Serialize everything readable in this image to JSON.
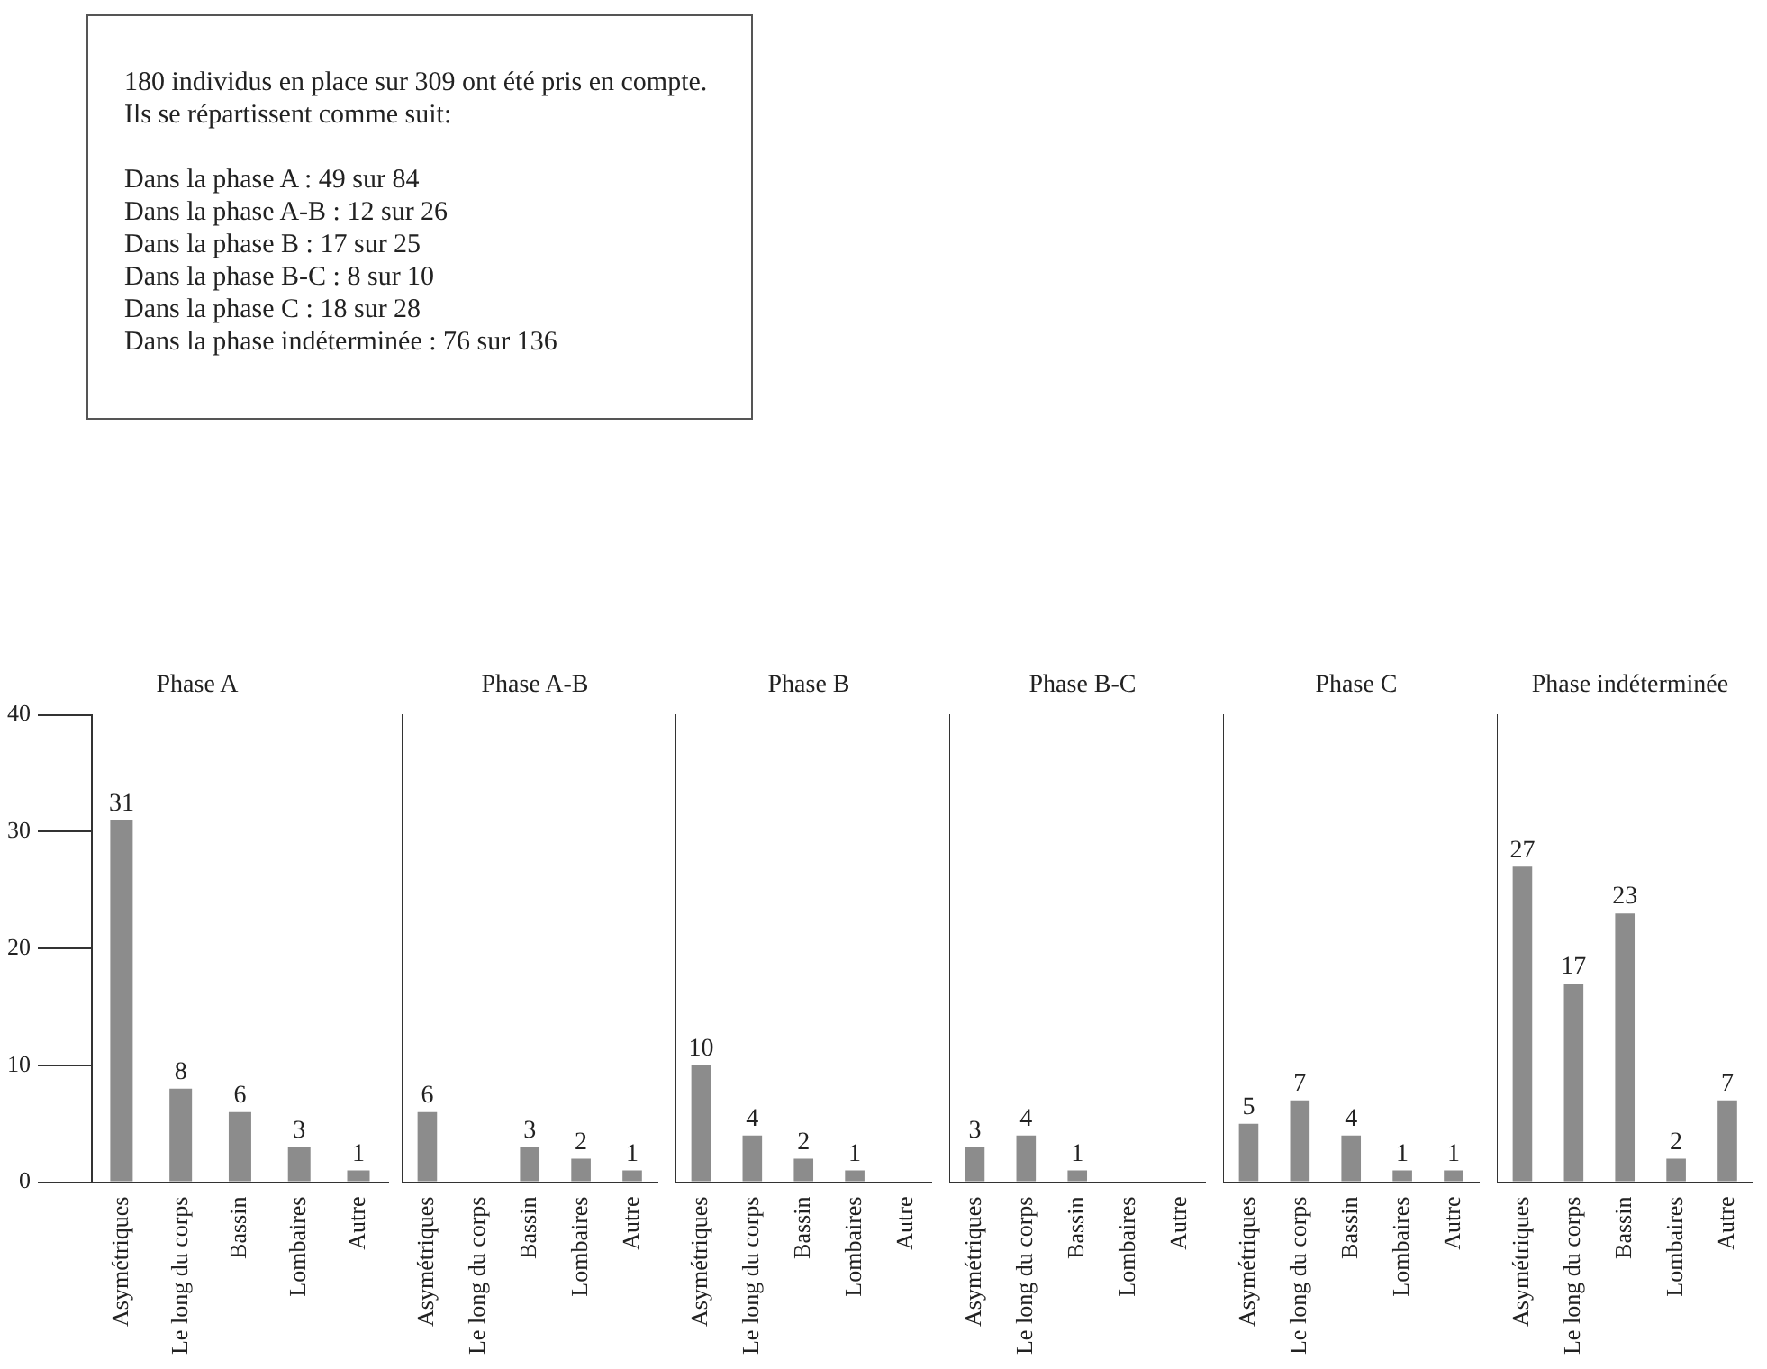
{
  "chart_data": [
    {
      "type": "other",
      "annotations": [
        "180 individus en place sur 309 ont été pris en compte.",
        "Ils se répartissent comme suit:",
        "Dans la phase A : 49 sur 84",
        "Dans la phase A-B : 12 sur 26",
        "Dans la phase B : 17 sur 25",
        "Dans la phase B-C : 8 sur 10",
        "Dans la phase C : 18 sur 28",
        "Dans la phase indéterminée : 76 sur 136"
      ]
    },
    {
      "type": "bar",
      "title": "Phase A",
      "categories": [
        "Asymétriques",
        "Le long du corps",
        "Bassin",
        "Lombaires",
        "Autre"
      ],
      "values": [
        31,
        8,
        6,
        3,
        1
      ],
      "color": "#8c8c8c",
      "ylim": [
        0,
        40
      ],
      "yticks": [
        0,
        10,
        20,
        30,
        40
      ],
      "data_labels": true
    },
    {
      "type": "bar",
      "title": "Phase A-B",
      "categories": [
        "Asymétriques",
        "Le long du corps",
        "Bassin",
        "Lombaires",
        "Autre"
      ],
      "values": [
        6,
        null,
        3,
        2,
        1
      ],
      "color": "#8c8c8c",
      "ylim": [
        0,
        40
      ],
      "yticks": [
        0,
        10,
        20,
        30,
        40
      ],
      "data_labels": true,
      "tick_labels": "x"
    },
    {
      "type": "bar",
      "title": "Phase B",
      "categories": [
        "Asymétriques",
        "Le long du corps",
        "Bassin",
        "Lombaires",
        "Autre"
      ],
      "values": [
        10,
        4,
        2,
        1,
        null
      ],
      "color": "#8c8c8c",
      "ylim": [
        0,
        40
      ],
      "yticks": [
        0,
        10,
        20,
        30,
        40
      ],
      "data_labels": true,
      "tick_labels": "x"
    },
    {
      "type": "bar",
      "title": "Phase B-C",
      "categories": [
        "Asymétriques",
        "Le long du corps",
        "Bassin",
        "Lombaires",
        "Autre"
      ],
      "values": [
        3,
        4,
        1,
        null,
        null
      ],
      "color": "#8c8c8c",
      "ylim": [
        0,
        40
      ],
      "yticks": [
        0,
        10,
        20,
        30,
        40
      ],
      "data_labels": true,
      "tick_labels": "x"
    },
    {
      "type": "bar",
      "title": "Phase C",
      "categories": [
        "Asymétriques",
        "Le long du corps",
        "Bassin",
        "Lombaires",
        "Autre"
      ],
      "values": [
        5,
        7,
        4,
        1,
        1
      ],
      "color": "#8c8c8c",
      "ylim": [
        0,
        40
      ],
      "yticks": [
        0,
        10,
        20,
        30,
        40
      ],
      "data_labels": true,
      "tick_labels": "x"
    },
    {
      "type": "bar",
      "title": "Phase indéterminée",
      "categories": [
        "Asymétriques",
        "Le long du corps",
        "Bassin",
        "Lombaires",
        "Autre"
      ],
      "values": [
        27,
        17,
        23,
        2,
        7
      ],
      "color": "#8c8c8c",
      "ylim": [
        0,
        40
      ],
      "yticks": [
        0,
        10,
        20,
        30,
        40
      ],
      "data_labels": true,
      "tick_labels": "x"
    }
  ]
}
